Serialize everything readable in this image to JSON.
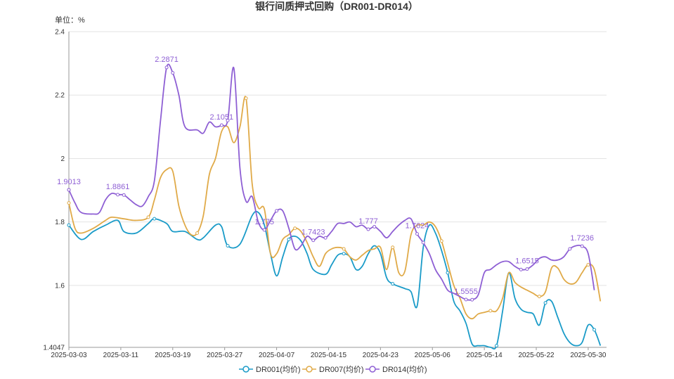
{
  "chart_data": {
    "type": "line",
    "title": "银行间质押式回购（DR001-DR014）",
    "unit_label": "单位：%",
    "ylim": [
      1.4047,
      2.4
    ],
    "yticks": [
      {
        "value": 1.4047,
        "label": "1.4047"
      },
      {
        "value": 1.6,
        "label": "1.6"
      },
      {
        "value": 1.8,
        "label": "1.8"
      },
      {
        "value": 2.0,
        "label": "2"
      },
      {
        "value": 2.2,
        "label": "2.2"
      },
      {
        "value": 2.4,
        "label": "2.4"
      }
    ],
    "xlim": [
      0,
      88
    ],
    "xticks": [
      {
        "i": 0,
        "label": "2025-03-03"
      },
      {
        "i": 8.5,
        "label": "2025-03-11"
      },
      {
        "i": 17,
        "label": "2025-03-19"
      },
      {
        "i": 25.5,
        "label": "2025-03-27"
      },
      {
        "i": 34,
        "label": "2025-04-07"
      },
      {
        "i": 42.5,
        "label": "2025-04-15"
      },
      {
        "i": 51,
        "label": "2025-04-23"
      },
      {
        "i": 59.5,
        "label": "2025-05-06"
      },
      {
        "i": 68,
        "label": "2025-05-14"
      },
      {
        "i": 76.5,
        "label": "2025-05-22"
      },
      {
        "i": 85,
        "label": "2025-05-30"
      }
    ],
    "grid": true,
    "legend_position": "bottom-center",
    "series": [
      {
        "name": "DR001(均价)",
        "color": "#1a9bc8",
        "values": [
          [
            0,
            1.79
          ],
          [
            2,
            1.745
          ],
          [
            4,
            1.77
          ],
          [
            6,
            1.79
          ],
          [
            8,
            1.805
          ],
          [
            9,
            1.77
          ],
          [
            11,
            1.765
          ],
          [
            13,
            1.795
          ],
          [
            14,
            1.81
          ],
          [
            16,
            1.795
          ],
          [
            17,
            1.77
          ],
          [
            19,
            1.77
          ],
          [
            21,
            1.745
          ],
          [
            22,
            1.75
          ],
          [
            24,
            1.79
          ],
          [
            25,
            1.785
          ],
          [
            26,
            1.725
          ],
          [
            28,
            1.73
          ],
          [
            30,
            1.82
          ],
          [
            31,
            1.83
          ],
          [
            32,
            1.79
          ],
          [
            33,
            1.7
          ],
          [
            34,
            1.63
          ],
          [
            35,
            1.69
          ],
          [
            36,
            1.745
          ],
          [
            37,
            1.755
          ],
          [
            38,
            1.74
          ],
          [
            39,
            1.7
          ],
          [
            40,
            1.65
          ],
          [
            42,
            1.635
          ],
          [
            43,
            1.665
          ],
          [
            44,
            1.695
          ],
          [
            45,
            1.7
          ],
          [
            46,
            1.69
          ],
          [
            47,
            1.65
          ],
          [
            48,
            1.66
          ],
          [
            49,
            1.7
          ],
          [
            50,
            1.725
          ],
          [
            51,
            1.7
          ],
          [
            52,
            1.625
          ],
          [
            53,
            1.605
          ],
          [
            55,
            1.59
          ],
          [
            56,
            1.58
          ],
          [
            57,
            1.535
          ],
          [
            58,
            1.72
          ],
          [
            59,
            1.79
          ],
          [
            60,
            1.765
          ],
          [
            61,
            1.71
          ],
          [
            62,
            1.64
          ],
          [
            63,
            1.55
          ],
          [
            64,
            1.52
          ],
          [
            65,
            1.48
          ],
          [
            66,
            1.415
          ],
          [
            67,
            1.41
          ],
          [
            68,
            1.41
          ],
          [
            69,
            1.405
          ],
          [
            70,
            1.41
          ],
          [
            71,
            1.52
          ],
          [
            72,
            1.64
          ],
          [
            73,
            1.56
          ],
          [
            74,
            1.525
          ],
          [
            75,
            1.515
          ],
          [
            76,
            1.51
          ],
          [
            77,
            1.475
          ],
          [
            78,
            1.545
          ],
          [
            79,
            1.55
          ],
          [
            80,
            1.5
          ],
          [
            81,
            1.45
          ],
          [
            82,
            1.42
          ],
          [
            83,
            1.41
          ],
          [
            84,
            1.42
          ],
          [
            85,
            1.475
          ],
          [
            86,
            1.46
          ],
          [
            87,
            1.41
          ]
        ],
        "label_points": []
      },
      {
        "name": "DR007(均价)",
        "color": "#e0aa48",
        "values": [
          [
            0,
            1.86
          ],
          [
            1,
            1.78
          ],
          [
            2,
            1.765
          ],
          [
            4,
            1.78
          ],
          [
            6,
            1.805
          ],
          [
            7,
            1.815
          ],
          [
            9,
            1.81
          ],
          [
            11,
            1.805
          ],
          [
            13,
            1.815
          ],
          [
            14,
            1.87
          ],
          [
            15,
            1.94
          ],
          [
            16,
            1.965
          ],
          [
            17,
            1.96
          ],
          [
            18,
            1.85
          ],
          [
            19,
            1.79
          ],
          [
            20,
            1.76
          ],
          [
            21,
            1.765
          ],
          [
            22,
            1.82
          ],
          [
            23,
            1.95
          ],
          [
            24,
            2.0
          ],
          [
            25,
            2.085
          ],
          [
            26,
            2.1
          ],
          [
            27,
            2.05
          ],
          [
            28,
            2.1
          ],
          [
            29,
            2.19
          ],
          [
            30,
            1.92
          ],
          [
            31,
            1.845
          ],
          [
            32,
            1.84
          ],
          [
            33,
            1.7
          ],
          [
            34,
            1.7
          ],
          [
            35,
            1.745
          ],
          [
            36,
            1.76
          ],
          [
            37,
            1.78
          ],
          [
            38,
            1.77
          ],
          [
            39,
            1.735
          ],
          [
            40,
            1.69
          ],
          [
            41,
            1.66
          ],
          [
            42,
            1.7
          ],
          [
            43,
            1.715
          ],
          [
            44,
            1.72
          ],
          [
            45,
            1.715
          ],
          [
            46,
            1.69
          ],
          [
            47,
            1.68
          ],
          [
            48,
            1.695
          ],
          [
            49,
            1.71
          ],
          [
            50,
            1.715
          ],
          [
            51,
            1.72
          ],
          [
            52,
            1.65
          ],
          [
            53,
            1.72
          ],
          [
            54,
            1.64
          ],
          [
            55,
            1.645
          ],
          [
            56,
            1.76
          ],
          [
            57,
            1.79
          ],
          [
            58,
            1.79
          ],
          [
            59,
            1.8
          ],
          [
            60,
            1.785
          ],
          [
            61,
            1.74
          ],
          [
            62,
            1.67
          ],
          [
            63,
            1.6
          ],
          [
            64,
            1.56
          ],
          [
            65,
            1.51
          ],
          [
            66,
            1.495
          ],
          [
            67,
            1.51
          ],
          [
            68,
            1.515
          ],
          [
            69,
            1.52
          ],
          [
            70,
            1.52
          ],
          [
            71,
            1.56
          ],
          [
            72,
            1.64
          ],
          [
            73,
            1.61
          ],
          [
            74,
            1.595
          ],
          [
            75,
            1.585
          ],
          [
            76,
            1.575
          ],
          [
            77,
            1.565
          ],
          [
            78,
            1.58
          ],
          [
            79,
            1.655
          ],
          [
            80,
            1.655
          ],
          [
            81,
            1.62
          ],
          [
            82,
            1.605
          ],
          [
            83,
            1.61
          ],
          [
            84,
            1.64
          ],
          [
            85,
            1.665
          ],
          [
            86,
            1.65
          ],
          [
            87,
            1.55
          ]
        ],
        "label_points": []
      },
      {
        "name": "DR014(均价)",
        "color": "#8e5fd4",
        "values": [
          [
            0,
            1.9013
          ],
          [
            1,
            1.86
          ],
          [
            2,
            1.83
          ],
          [
            4,
            1.825
          ],
          [
            5,
            1.83
          ],
          [
            6,
            1.87
          ],
          [
            7,
            1.89
          ],
          [
            8,
            1.8861
          ],
          [
            9,
            1.885
          ],
          [
            10,
            1.87
          ],
          [
            11,
            1.855
          ],
          [
            12,
            1.85
          ],
          [
            13,
            1.88
          ],
          [
            14,
            1.93
          ],
          [
            15,
            2.12
          ],
          [
            16,
            2.2871
          ],
          [
            17,
            2.27
          ],
          [
            18,
            2.2
          ],
          [
            19,
            2.1
          ],
          [
            21,
            2.09
          ],
          [
            22,
            2.08
          ],
          [
            23,
            2.115
          ],
          [
            24,
            2.1
          ],
          [
            25,
            2.105
          ],
          [
            26,
            2.12
          ],
          [
            27,
            2.285
          ],
          [
            28,
            1.97
          ],
          [
            29,
            1.865
          ],
          [
            30,
            1.88
          ],
          [
            31,
            1.8
          ],
          [
            32,
            1.775
          ],
          [
            33,
            1.805
          ],
          [
            34,
            1.835
          ],
          [
            35,
            1.835
          ],
          [
            36,
            1.78
          ],
          [
            37,
            1.715
          ],
          [
            38,
            1.725
          ],
          [
            39,
            1.755
          ],
          [
            40,
            1.7423
          ],
          [
            41,
            1.755
          ],
          [
            42,
            1.75
          ],
          [
            43,
            1.77
          ],
          [
            44,
            1.795
          ],
          [
            45,
            1.795
          ],
          [
            46,
            1.8
          ],
          [
            47,
            1.785
          ],
          [
            48,
            1.79
          ],
          [
            49,
            1.777
          ],
          [
            50,
            1.785
          ],
          [
            51,
            1.77
          ],
          [
            52,
            1.75
          ],
          [
            53,
            1.77
          ],
          [
            54,
            1.79
          ],
          [
            55,
            1.805
          ],
          [
            56,
            1.81
          ],
          [
            57,
            1.7624
          ],
          [
            58,
            1.735
          ],
          [
            59,
            1.7
          ],
          [
            60,
            1.65
          ],
          [
            61,
            1.62
          ],
          [
            62,
            1.585
          ],
          [
            63,
            1.575
          ],
          [
            64,
            1.565
          ],
          [
            65,
            1.5555
          ],
          [
            66,
            1.555
          ],
          [
            67,
            1.57
          ],
          [
            68,
            1.64
          ],
          [
            69,
            1.65
          ],
          [
            70,
            1.665
          ],
          [
            71,
            1.675
          ],
          [
            72,
            1.675
          ],
          [
            73,
            1.66
          ],
          [
            74,
            1.65
          ],
          [
            75,
            1.6515
          ],
          [
            76,
            1.665
          ],
          [
            77,
            1.685
          ],
          [
            78,
            1.69
          ],
          [
            79,
            1.68
          ],
          [
            80,
            1.68
          ],
          [
            81,
            1.69
          ],
          [
            82,
            1.715
          ],
          [
            83,
            1.725
          ],
          [
            84,
            1.7236
          ],
          [
            85,
            1.7
          ],
          [
            86,
            1.585
          ]
        ],
        "label_points": [
          [
            0,
            1.9013,
            "1.9013"
          ],
          [
            8,
            1.8861,
            "1.8861"
          ],
          [
            16,
            2.2871,
            "2.2871"
          ],
          [
            25,
            2.1051,
            "2.1051"
          ],
          [
            32,
            1.775,
            "1.775"
          ],
          [
            40,
            1.7423,
            "1.7423"
          ],
          [
            49,
            1.777,
            "1.777"
          ],
          [
            57,
            1.7624,
            "1.7624"
          ],
          [
            65,
            1.5555,
            "1.5555"
          ],
          [
            75,
            1.6515,
            "1.6515"
          ],
          [
            84,
            1.7236,
            "1.7236"
          ]
        ]
      }
    ]
  }
}
